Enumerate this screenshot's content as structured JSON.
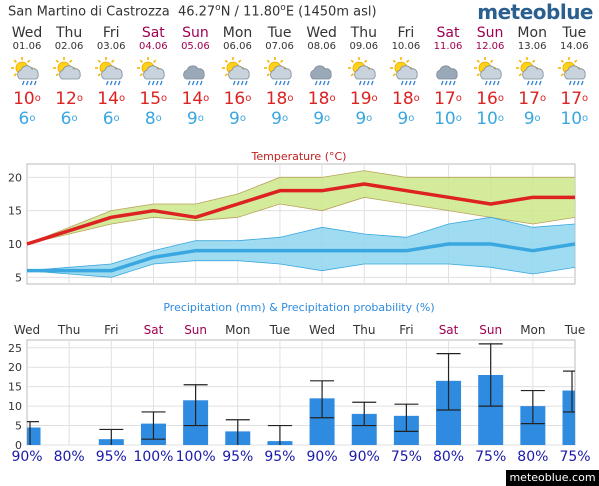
{
  "header": {
    "location": "San Martino di Castrozza",
    "lat": "46.27",
    "lon": "11.80",
    "deg": "o",
    "lat_dir": "N",
    "lon_dir": "E",
    "altitude": "(1450m asl)",
    "logo": "meteoblue"
  },
  "footer": {
    "site": "meteoblue.com"
  },
  "colors": {
    "tmax": "#dd2222",
    "tmin": "#3aa7e0",
    "weekend": "#a00050",
    "precip_bar": "#2e8be0",
    "probability": "#1a1aa8"
  },
  "days": [
    {
      "name": "Wed",
      "date": "01.06",
      "weekend": false,
      "icon": "sun-cloud-rain-icon",
      "tmax": "10",
      "tmin": "6"
    },
    {
      "name": "Thu",
      "date": "02.06",
      "weekend": false,
      "icon": "sun-cloud-icon",
      "tmax": "12",
      "tmin": "6"
    },
    {
      "name": "Fri",
      "date": "03.06",
      "weekend": false,
      "icon": "sun-cloud-rain-icon",
      "tmax": "14",
      "tmin": "6"
    },
    {
      "name": "Sat",
      "date": "04.06",
      "weekend": true,
      "icon": "sun-cloud-rain-icon",
      "tmax": "15",
      "tmin": "8"
    },
    {
      "name": "Sun",
      "date": "05.06",
      "weekend": true,
      "icon": "cloud-rain-icon",
      "tmax": "14",
      "tmin": "9"
    },
    {
      "name": "Mon",
      "date": "06.06",
      "weekend": false,
      "icon": "sun-cloud-rain-icon",
      "tmax": "16",
      "tmin": "9"
    },
    {
      "name": "Tue",
      "date": "07.06",
      "weekend": false,
      "icon": "sun-cloud-rain-icon",
      "tmax": "18",
      "tmin": "9"
    },
    {
      "name": "Wed",
      "date": "08.06",
      "weekend": false,
      "icon": "cloud-rain-icon",
      "tmax": "18",
      "tmin": "9"
    },
    {
      "name": "Thu",
      "date": "09.06",
      "weekend": false,
      "icon": "sun-cloud-rain-icon",
      "tmax": "19",
      "tmin": "9"
    },
    {
      "name": "Fri",
      "date": "10.06",
      "weekend": false,
      "icon": "sun-cloud-rain-icon",
      "tmax": "18",
      "tmin": "9"
    },
    {
      "name": "Sat",
      "date": "11.06",
      "weekend": true,
      "icon": "cloud-rain-icon",
      "tmax": "17",
      "tmin": "10"
    },
    {
      "name": "Sun",
      "date": "12.06",
      "weekend": true,
      "icon": "sun-cloud-rain-icon",
      "tmax": "16",
      "tmin": "10"
    },
    {
      "name": "Mon",
      "date": "13.06",
      "weekend": false,
      "icon": "sun-cloud-rain-icon",
      "tmax": "17",
      "tmin": "9"
    },
    {
      "name": "Tue",
      "date": "14.06",
      "weekend": false,
      "icon": "sun-cloud-rain-icon",
      "tmax": "17",
      "tmin": "10"
    }
  ],
  "chart_data": [
    {
      "type": "line",
      "title": "Temperature (°C)",
      "ylim": [
        4,
        22
      ],
      "yticks": [
        5,
        10,
        15,
        20
      ],
      "grid": true,
      "x": [
        0,
        1,
        2,
        3,
        4,
        5,
        6,
        7,
        8,
        9,
        10,
        11,
        12,
        13
      ],
      "series": [
        {
          "name": "max",
          "values": [
            10,
            12,
            14,
            15,
            14,
            16,
            18,
            18,
            19,
            18,
            17,
            16,
            17,
            17
          ],
          "band_low": [
            10,
            11.5,
            13,
            14,
            13.5,
            14,
            16,
            15,
            17,
            16,
            15,
            14,
            13,
            14
          ],
          "band_high": [
            10,
            12.5,
            15,
            16,
            16,
            17.5,
            20,
            20,
            21,
            20,
            20,
            20,
            20,
            20
          ]
        },
        {
          "name": "min",
          "values": [
            6,
            6,
            6,
            8,
            9,
            9,
            9,
            9,
            9,
            9,
            10,
            10,
            9,
            10
          ],
          "band_low": [
            6,
            5.5,
            5,
            7,
            7.5,
            7.5,
            7,
            6,
            7,
            7,
            7,
            6.5,
            5.5,
            6.5
          ],
          "band_high": [
            6,
            6.5,
            7,
            9,
            10.5,
            10.5,
            11,
            12.5,
            11.5,
            11,
            13,
            14,
            12.5,
            13
          ]
        }
      ]
    },
    {
      "type": "bar",
      "title": "Precipitation (mm) & Precipitation probability (%)",
      "ylim": [
        0,
        27
      ],
      "yticks": [
        0,
        5,
        10,
        15,
        20,
        25
      ],
      "grid": true,
      "categories": [
        "Wed",
        "Thu",
        "Fri",
        "Sat",
        "Sun",
        "Mon",
        "Tue",
        "Wed",
        "Thu",
        "Fri",
        "Sat",
        "Sun",
        "Mon",
        "Tue"
      ],
      "category_weekend": [
        false,
        false,
        false,
        true,
        true,
        false,
        false,
        false,
        false,
        false,
        true,
        true,
        false,
        false
      ],
      "values": [
        4.5,
        0,
        1.5,
        5.5,
        11.5,
        3.5,
        1,
        12,
        8,
        7.5,
        16.5,
        18,
        10,
        14
      ],
      "err_low": [
        0,
        0,
        0,
        1.5,
        5,
        0,
        0,
        7,
        5,
        3.5,
        9,
        10,
        5.5,
        8.5
      ],
      "err_high": [
        6,
        0,
        4,
        8.5,
        15.5,
        6.5,
        5,
        16.5,
        11,
        10.5,
        23.5,
        26,
        14,
        19
      ],
      "probability": [
        "90%",
        "80%",
        "95%",
        "100%",
        "100%",
        "95%",
        "95%",
        "90%",
        "90%",
        "75%",
        "80%",
        "75%",
        "80%",
        "75%"
      ]
    }
  ]
}
